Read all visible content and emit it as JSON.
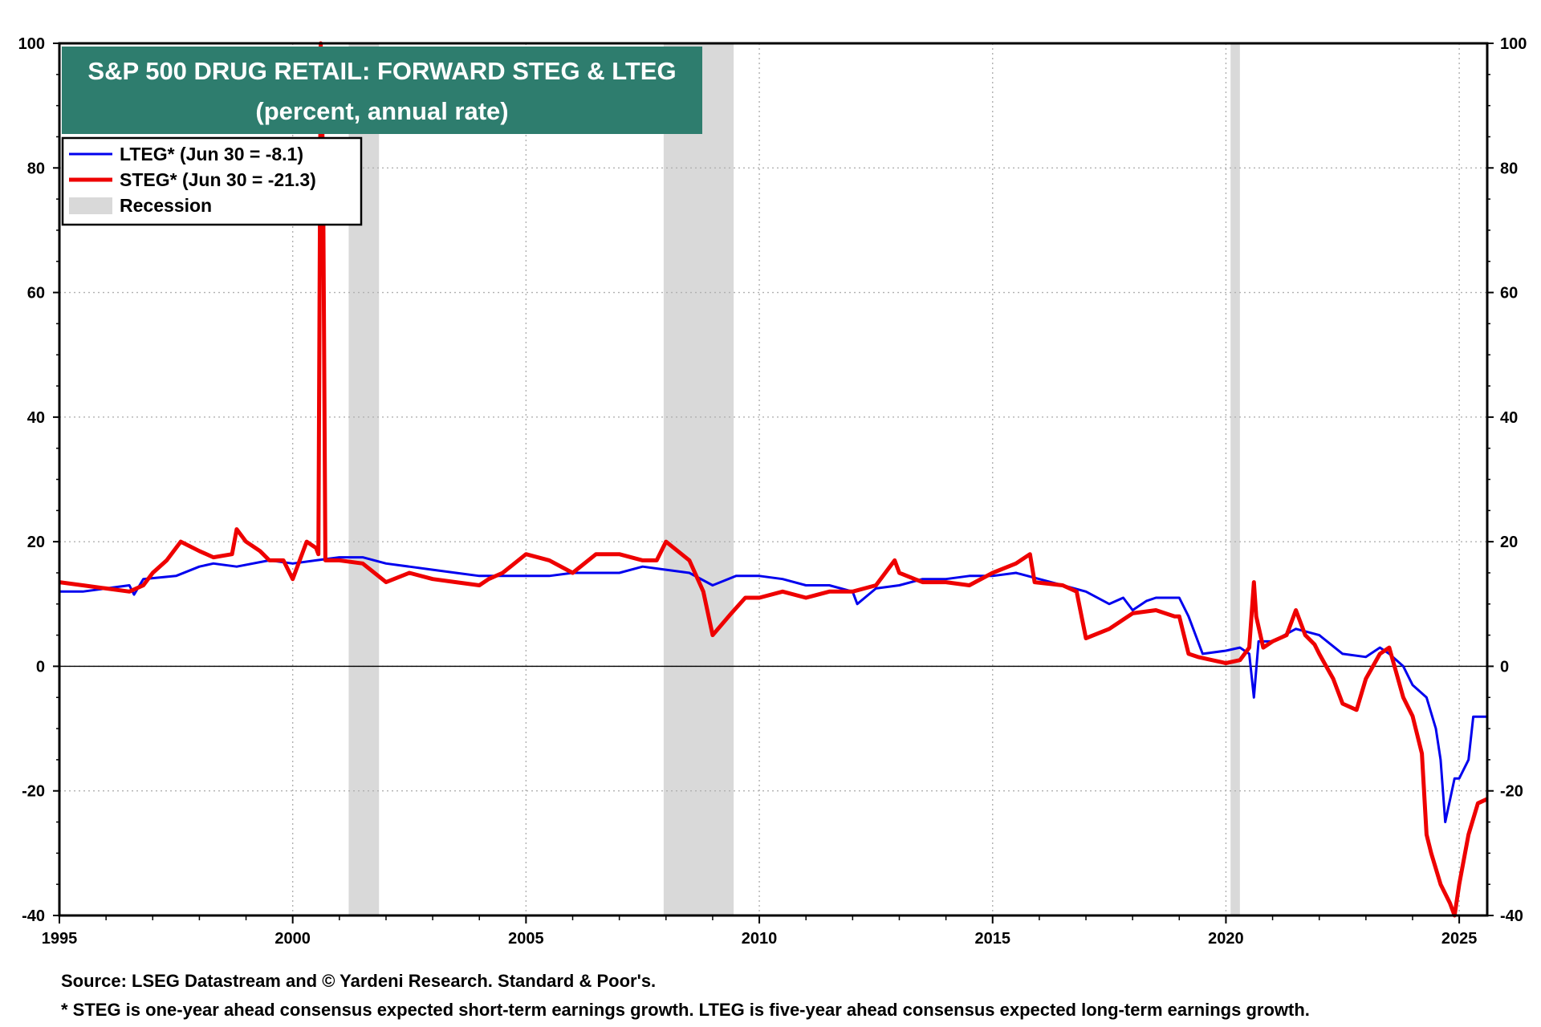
{
  "chart_data": {
    "type": "line",
    "title": "S&P 500 DRUG RETAIL: FORWARD STEG & LTEG",
    "subtitle": "(percent, annual rate)",
    "xlim": [
      1995,
      2025.6
    ],
    "ylim": [
      -40,
      100
    ],
    "x_ticks": [
      1995,
      2000,
      2005,
      2010,
      2015,
      2020,
      2025
    ],
    "y_ticks": [
      -40,
      -20,
      0,
      20,
      40,
      60,
      80,
      100
    ],
    "grid": true,
    "legend_position": "top-left",
    "legend": [
      {
        "label": "LTEG* (Jun 30 = -8.1)",
        "color": "#0000ee",
        "kind": "line"
      },
      {
        "label": "STEG* (Jun 30 = -21.3)",
        "color": "#ee0000",
        "kind": "line"
      },
      {
        "label": "Recession",
        "color": "#d9d9d9",
        "kind": "box"
      }
    ],
    "recessions": [
      [
        2001.2,
        2001.85
      ],
      [
        2007.95,
        2009.45
      ],
      [
        2020.1,
        2020.3
      ]
    ],
    "series": [
      {
        "name": "LTEG* (Jun 30 = -8.1)",
        "color": "#0000ee",
        "x": [
          1995.0,
          1995.5,
          1996.0,
          1996.5,
          1996.6,
          1996.8,
          1997.5,
          1998.0,
          1998.3,
          1998.8,
          1999.5,
          2000.0,
          2000.5,
          2001.0,
          2001.5,
          2002.0,
          2002.5,
          2003.0,
          2003.5,
          2004.0,
          2004.5,
          2005.0,
          2005.5,
          2006.0,
          2006.5,
          2007.0,
          2007.5,
          2008.0,
          2008.5,
          2009.0,
          2009.5,
          2010.0,
          2010.5,
          2011.0,
          2011.5,
          2012.0,
          2012.1,
          2012.5,
          2013.0,
          2013.5,
          2014.0,
          2014.5,
          2015.0,
          2015.5,
          2016.0,
          2016.5,
          2017.0,
          2017.5,
          2017.8,
          2018.0,
          2018.3,
          2018.5,
          2019.0,
          2019.2,
          2019.5,
          2020.0,
          2020.3,
          2020.5,
          2020.6,
          2020.7,
          2020.8,
          2021.0,
          2021.5,
          2022.0,
          2022.5,
          2023.0,
          2023.3,
          2023.5,
          2023.8,
          2024.0,
          2024.3,
          2024.5,
          2024.6,
          2024.7,
          2024.9,
          2025.0,
          2025.2,
          2025.3,
          2025.6
        ],
        "y": [
          12,
          12,
          12.5,
          13,
          11.5,
          14,
          14.5,
          16,
          16.5,
          16,
          17,
          16.5,
          17,
          17.5,
          17.5,
          16.5,
          16,
          15.5,
          15,
          14.5,
          14.5,
          14.5,
          14.5,
          15,
          15,
          15,
          16,
          15.5,
          15,
          13,
          14.5,
          14.5,
          14,
          13,
          13,
          12,
          10,
          12.5,
          13,
          14,
          14,
          14.5,
          14.5,
          15,
          14,
          13,
          12,
          10,
          11,
          9,
          10.5,
          11,
          11,
          8,
          2,
          2.5,
          3,
          2,
          -5,
          4,
          4,
          4,
          6,
          5,
          2,
          1.5,
          3,
          2,
          0,
          -3,
          -5,
          -10,
          -15,
          -25,
          -18,
          -18,
          -15,
          -8.1,
          -8.1
        ]
      },
      {
        "name": "STEG* (Jun 30 = -21.3)",
        "color": "#ee0000",
        "x": [
          1995.0,
          1995.5,
          1996.0,
          1996.5,
          1996.8,
          1997.0,
          1997.3,
          1997.6,
          1998.0,
          1998.3,
          1998.7,
          1998.8,
          1999.0,
          1999.3,
          1999.5,
          1999.8,
          2000.0,
          2000.3,
          2000.5,
          2000.55,
          2000.6,
          2000.65,
          2000.7,
          2001.0,
          2001.5,
          2002.0,
          2002.5,
          2003.0,
          2003.5,
          2004.0,
          2004.2,
          2004.5,
          2005.0,
          2005.5,
          2006.0,
          2006.5,
          2007.0,
          2007.5,
          2007.8,
          2008.0,
          2008.5,
          2008.8,
          2009.0,
          2009.4,
          2009.7,
          2010.0,
          2010.5,
          2011.0,
          2011.5,
          2012.0,
          2012.5,
          2012.9,
          2013.0,
          2013.5,
          2014.0,
          2014.5,
          2015.0,
          2015.5,
          2015.8,
          2015.9,
          2016.5,
          2016.8,
          2017.0,
          2017.5,
          2018.0,
          2018.5,
          2018.9,
          2019.0,
          2019.2,
          2019.4,
          2019.7,
          2020.0,
          2020.3,
          2020.5,
          2020.6,
          2020.65,
          2020.8,
          2021.0,
          2021.3,
          2021.5,
          2021.7,
          2021.9,
          2022.0,
          2022.3,
          2022.5,
          2022.8,
          2023.0,
          2023.3,
          2023.5,
          2023.8,
          2024.0,
          2024.2,
          2024.3,
          2024.4,
          2024.6,
          2024.8,
          2024.9,
          2025.0,
          2025.2,
          2025.4,
          2025.6
        ],
        "y": [
          13.5,
          13,
          12.5,
          12,
          13,
          15,
          17,
          20,
          18.5,
          17.5,
          18,
          22,
          20,
          18.5,
          17,
          17,
          14,
          20,
          19,
          18,
          100,
          80,
          17,
          17,
          16.5,
          13.5,
          15,
          14,
          13.5,
          13,
          14,
          15,
          18,
          17,
          15,
          18,
          18,
          17,
          17,
          20,
          17,
          12,
          5,
          8.5,
          11,
          11,
          12,
          11,
          12,
          12,
          13,
          17,
          15,
          13.5,
          13.5,
          13,
          15,
          16.5,
          18,
          13.5,
          13,
          12,
          4.5,
          6,
          8.5,
          9,
          8,
          8,
          2,
          1.5,
          1,
          0.5,
          1,
          3,
          13.5,
          8,
          3,
          4,
          5,
          9,
          5,
          3.5,
          2,
          -2,
          -6,
          -7,
          -2,
          2,
          3,
          -5,
          -8,
          -14,
          -27,
          -30,
          -35,
          -38,
          -40,
          -35,
          -27,
          -22,
          -21.3
        ]
      }
    ]
  },
  "footer": {
    "source": "Source: LSEG Datastream and © Yardeni Research. Standard & Poor's.",
    "note": "* STEG is one-year ahead consensus expected short-term earnings growth. LTEG is five-year ahead consensus expected long-term earnings growth."
  }
}
